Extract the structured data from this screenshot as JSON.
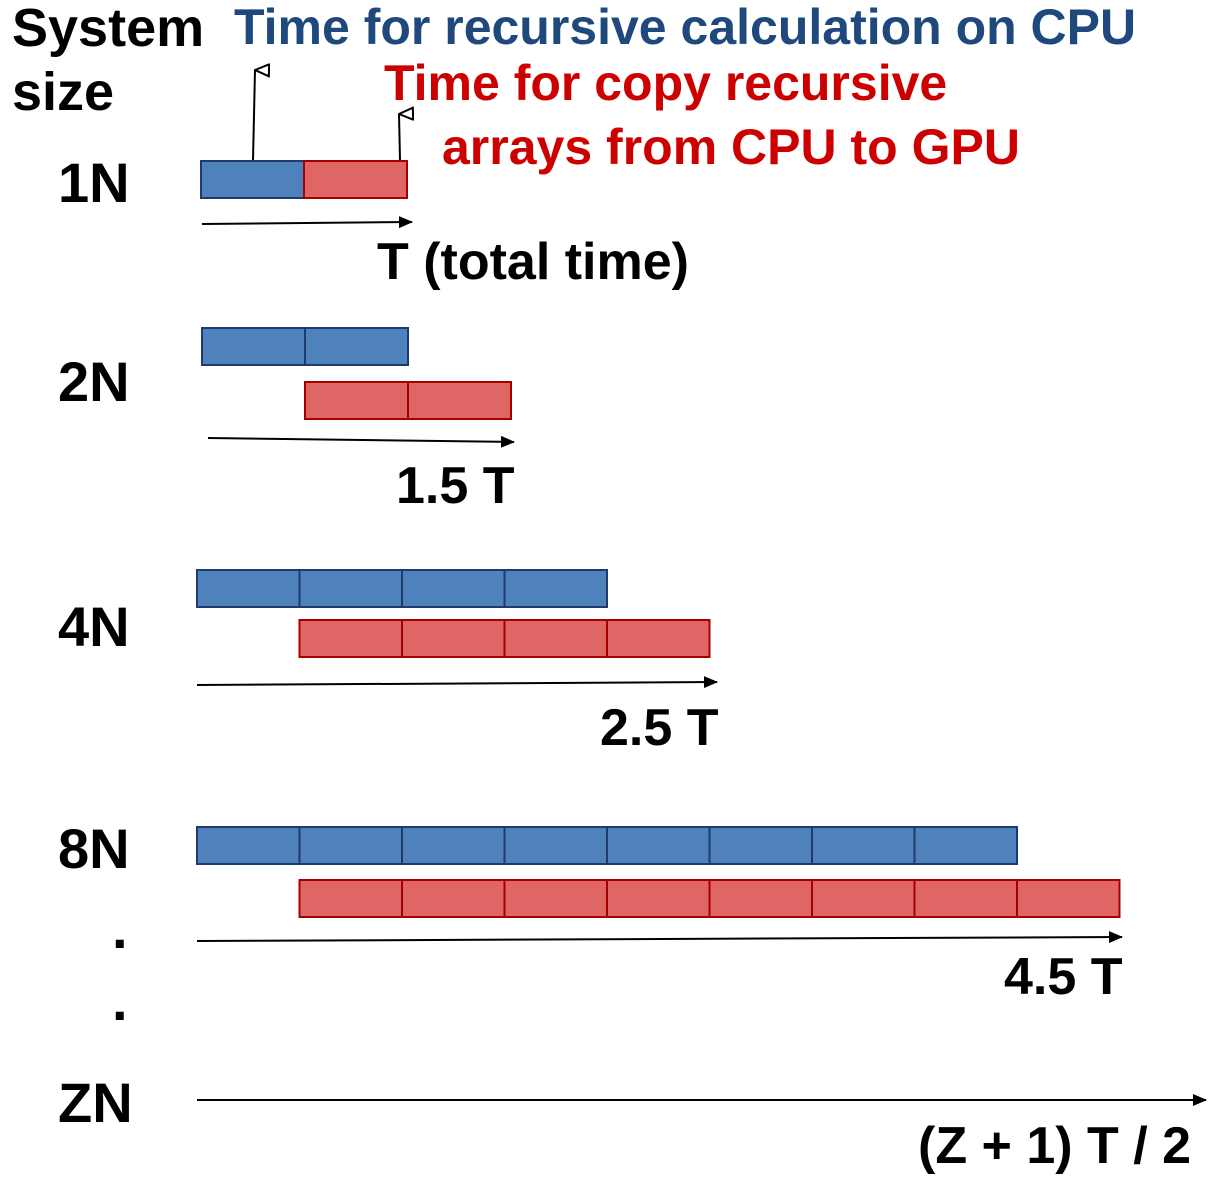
{
  "axis_label": {
    "line1": "System",
    "line2": "size"
  },
  "legend": {
    "cpu_label": "Time for recursive calculation on CPU",
    "copy_label_line1": "Time for copy recursive",
    "copy_label_line2": "arrays from CPU to GPU"
  },
  "colors": {
    "cpu_fill": "#4f81bd",
    "cpu_stroke": "#1f3b6b",
    "cpu_text": "#1f497d",
    "copy_fill": "#e06666",
    "copy_stroke": "#a50000",
    "copy_text": "#cc0000",
    "ink": "#000000"
  },
  "rows": [
    {
      "label": "1N",
      "blocks": 1,
      "time_label": "T (total time)"
    },
    {
      "label": "2N",
      "blocks": 2,
      "time_label": "1.5 T"
    },
    {
      "label": "4N",
      "blocks": 4,
      "time_label": "2.5 T"
    },
    {
      "label": "8N",
      "blocks": 8,
      "time_label": "4.5 T"
    },
    {
      "label": "ZN",
      "blocks": null,
      "time_label": "(Z + 1) T / 2"
    }
  ],
  "ellipsis": [
    ".",
    "."
  ]
}
